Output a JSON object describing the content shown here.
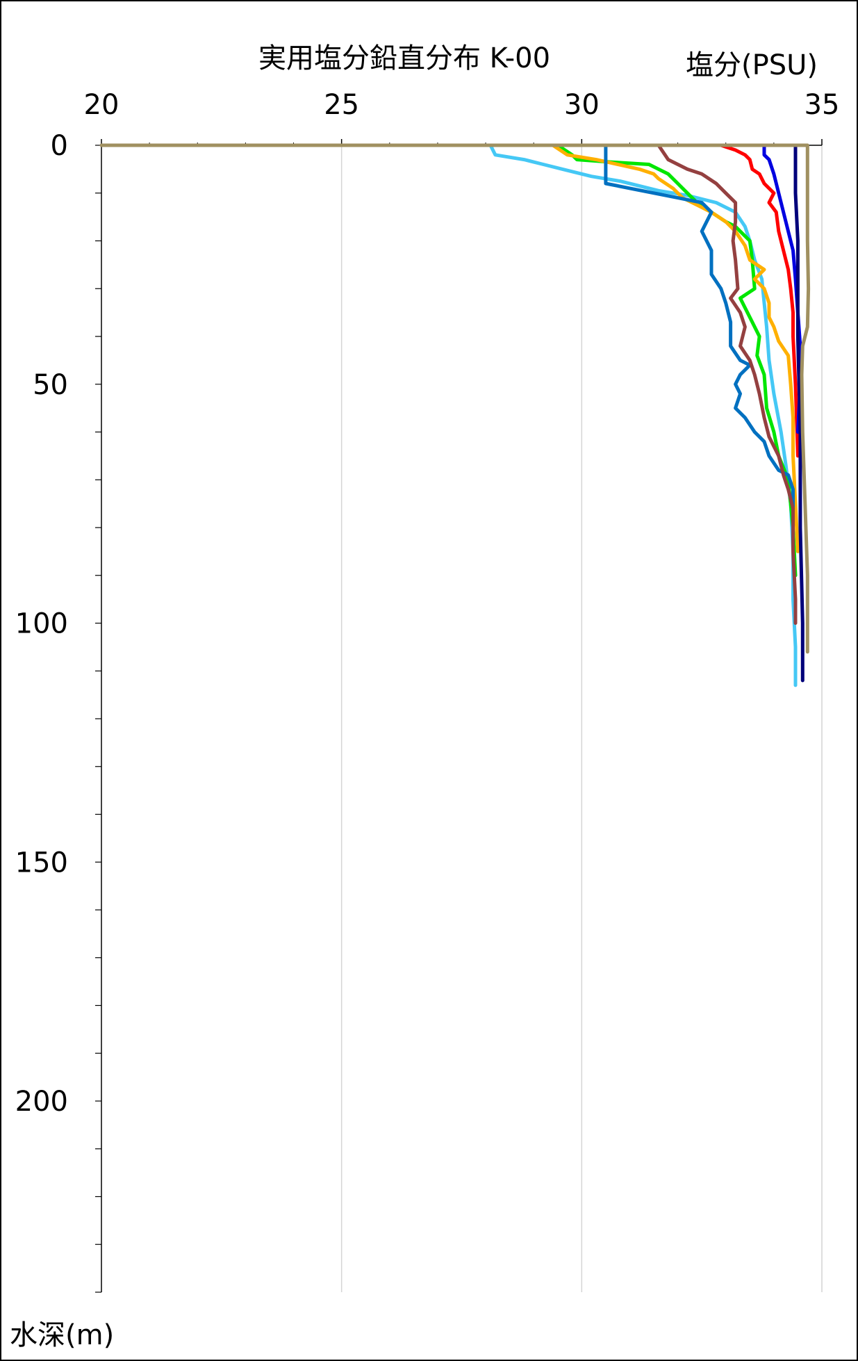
{
  "chart_data": {
    "type": "line",
    "title": "実用塩分鉛直分布 K-00",
    "xlabel": "塩分(PSU)",
    "ylabel": "水深(m)",
    "xlim": [
      20,
      35
    ],
    "ylim": [
      0,
      240
    ],
    "y_inverted": true,
    "x_axis_position": "top",
    "x_ticks": [
      "20",
      "25",
      "30",
      "35"
    ],
    "y_ticks": [
      "0",
      "50",
      "100",
      "150",
      "200"
    ],
    "grid": "vertical",
    "legend": "none",
    "series": [
      {
        "color": "#45c8f5",
        "points": [
          [
            28.1,
            0
          ],
          [
            28.2,
            2
          ],
          [
            28.8,
            3
          ],
          [
            29.2,
            4
          ],
          [
            29.6,
            5
          ],
          [
            30.2,
            6.5
          ],
          [
            30.8,
            7.5
          ],
          [
            31.2,
            8.5
          ],
          [
            31.6,
            9.5
          ],
          [
            32.2,
            10.5
          ],
          [
            32.8,
            12
          ],
          [
            33.2,
            14
          ],
          [
            33.4,
            17
          ],
          [
            33.5,
            20
          ],
          [
            33.6,
            24
          ],
          [
            33.75,
            28
          ],
          [
            33.8,
            33
          ],
          [
            33.85,
            38
          ],
          [
            33.9,
            45
          ],
          [
            34.0,
            52
          ],
          [
            34.15,
            60
          ],
          [
            34.25,
            67
          ],
          [
            34.35,
            75
          ],
          [
            34.4,
            85
          ],
          [
            34.4,
            95
          ],
          [
            34.45,
            105
          ],
          [
            34.45,
            113
          ]
        ]
      },
      {
        "color": "#00e600",
        "points": [
          [
            29.5,
            0
          ],
          [
            29.8,
            2
          ],
          [
            29.9,
            3
          ],
          [
            30.6,
            3.5
          ],
          [
            31.4,
            4
          ],
          [
            31.6,
            5
          ],
          [
            31.8,
            6
          ],
          [
            32.0,
            8
          ],
          [
            32.2,
            10
          ],
          [
            32.4,
            12
          ],
          [
            32.7,
            14
          ],
          [
            33.0,
            16
          ],
          [
            33.2,
            17
          ],
          [
            33.3,
            18
          ],
          [
            33.5,
            20
          ],
          [
            33.55,
            24
          ],
          [
            33.6,
            30
          ],
          [
            33.3,
            32
          ],
          [
            33.4,
            34
          ],
          [
            33.55,
            37
          ],
          [
            33.7,
            40
          ],
          [
            33.65,
            44
          ],
          [
            33.8,
            48
          ],
          [
            33.85,
            55
          ],
          [
            34.0,
            60
          ],
          [
            34.1,
            65
          ],
          [
            34.3,
            70
          ],
          [
            34.4,
            80
          ],
          [
            34.45,
            90
          ]
        ]
      },
      {
        "color": "#ffb000",
        "points": [
          [
            29.4,
            0
          ],
          [
            29.7,
            2
          ],
          [
            30.3,
            3
          ],
          [
            31.2,
            5
          ],
          [
            31.5,
            6
          ],
          [
            31.6,
            7
          ],
          [
            31.9,
            9
          ],
          [
            32.1,
            11
          ],
          [
            32.4,
            12.5
          ],
          [
            32.7,
            14
          ],
          [
            33.0,
            16
          ],
          [
            33.2,
            18
          ],
          [
            33.4,
            21
          ],
          [
            33.5,
            24
          ],
          [
            33.8,
            26
          ],
          [
            33.6,
            28
          ],
          [
            33.8,
            30
          ],
          [
            33.9,
            33
          ],
          [
            33.9,
            36
          ],
          [
            34.0,
            38
          ],
          [
            34.1,
            41
          ],
          [
            34.3,
            44
          ],
          [
            34.35,
            50
          ],
          [
            34.4,
            57
          ],
          [
            34.4,
            65
          ],
          [
            34.45,
            75
          ],
          [
            34.5,
            85
          ]
        ]
      },
      {
        "color": "#0070c0",
        "points": [
          [
            30.5,
            0
          ],
          [
            30.5,
            8
          ],
          [
            31.0,
            9
          ],
          [
            32.0,
            11
          ],
          [
            32.5,
            12
          ],
          [
            32.7,
            14
          ],
          [
            32.6,
            16
          ],
          [
            32.5,
            18
          ],
          [
            32.6,
            20
          ],
          [
            32.7,
            22
          ],
          [
            32.7,
            27
          ],
          [
            32.9,
            30
          ],
          [
            33.0,
            33
          ],
          [
            33.1,
            37
          ],
          [
            33.1,
            42
          ],
          [
            33.3,
            45
          ],
          [
            33.5,
            46
          ],
          [
            33.3,
            48
          ],
          [
            33.2,
            50
          ],
          [
            33.3,
            52
          ],
          [
            33.2,
            55
          ],
          [
            33.4,
            57
          ],
          [
            33.6,
            60
          ],
          [
            33.8,
            62
          ],
          [
            33.9,
            65
          ],
          [
            34.1,
            68
          ],
          [
            34.3,
            69
          ],
          [
            34.4,
            72
          ],
          [
            34.4,
            78
          ]
        ]
      },
      {
        "color": "#944040",
        "points": [
          [
            31.6,
            0
          ],
          [
            31.8,
            3
          ],
          [
            32.0,
            4
          ],
          [
            32.2,
            5
          ],
          [
            32.5,
            6
          ],
          [
            32.8,
            8
          ],
          [
            33.0,
            10
          ],
          [
            33.2,
            12
          ],
          [
            33.2,
            16
          ],
          [
            33.15,
            20
          ],
          [
            33.2,
            24
          ],
          [
            33.25,
            30
          ],
          [
            33.1,
            32
          ],
          [
            33.3,
            35
          ],
          [
            33.4,
            38
          ],
          [
            33.3,
            42
          ],
          [
            33.5,
            45
          ],
          [
            33.6,
            48
          ],
          [
            33.7,
            52
          ],
          [
            33.8,
            57
          ],
          [
            33.9,
            61
          ],
          [
            34.1,
            65
          ],
          [
            34.2,
            69
          ],
          [
            34.3,
            72
          ],
          [
            34.4,
            76
          ],
          [
            34.4,
            85
          ],
          [
            34.45,
            95
          ],
          [
            34.45,
            100
          ]
        ]
      },
      {
        "color": "#ff0000",
        "points": [
          [
            32.9,
            0
          ],
          [
            33.2,
            1
          ],
          [
            33.4,
            2
          ],
          [
            33.5,
            3
          ],
          [
            33.55,
            5
          ],
          [
            33.7,
            6
          ],
          [
            33.8,
            8
          ],
          [
            34.0,
            10
          ],
          [
            33.9,
            12
          ],
          [
            34.05,
            14
          ],
          [
            34.1,
            18
          ],
          [
            34.2,
            22
          ],
          [
            34.3,
            26
          ],
          [
            34.35,
            30
          ],
          [
            34.4,
            35
          ],
          [
            34.4,
            40
          ],
          [
            34.45,
            50
          ],
          [
            34.5,
            65
          ]
        ]
      },
      {
        "color": "#0000e0",
        "points": [
          [
            33.8,
            0
          ],
          [
            33.8,
            2
          ],
          [
            33.9,
            3
          ],
          [
            34.0,
            6
          ],
          [
            34.1,
            10
          ],
          [
            34.2,
            14
          ],
          [
            34.3,
            18
          ],
          [
            34.4,
            22
          ],
          [
            34.45,
            28
          ],
          [
            34.5,
            35
          ],
          [
            34.55,
            42
          ],
          [
            34.55,
            50
          ],
          [
            34.5,
            60
          ]
        ]
      },
      {
        "color": "#00007a",
        "points": [
          [
            34.45,
            0
          ],
          [
            34.45,
            10
          ],
          [
            34.5,
            20
          ],
          [
            34.5,
            40
          ],
          [
            34.55,
            60
          ],
          [
            34.55,
            80
          ],
          [
            34.6,
            100
          ],
          [
            34.6,
            112
          ]
        ]
      },
      {
        "color": "#a09060",
        "points": [
          [
            20,
            0
          ],
          [
            33.0,
            0
          ],
          [
            34.7,
            0
          ],
          [
            34.7,
            20
          ],
          [
            34.72,
            30
          ],
          [
            34.7,
            38
          ],
          [
            34.6,
            42
          ],
          [
            34.58,
            48
          ],
          [
            34.6,
            60
          ],
          [
            34.65,
            75
          ],
          [
            34.7,
            90
          ],
          [
            34.7,
            106
          ]
        ]
      }
    ]
  }
}
